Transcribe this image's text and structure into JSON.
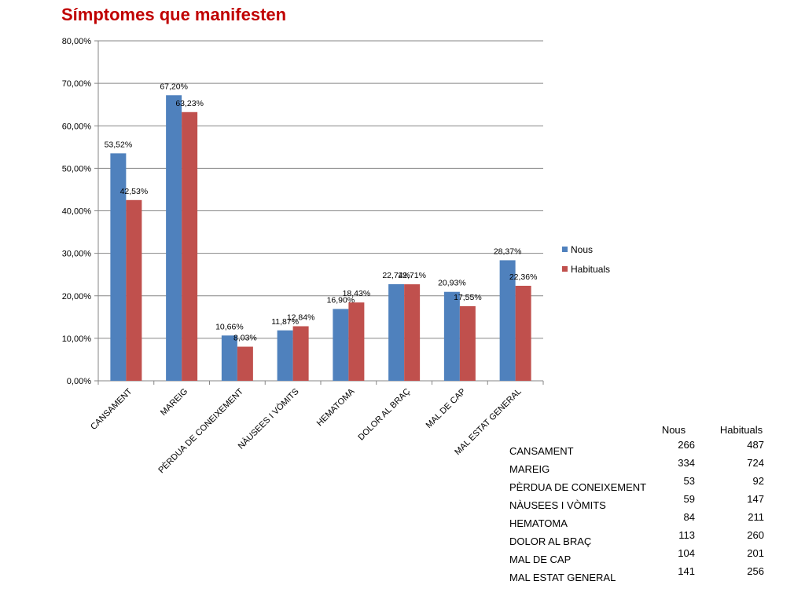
{
  "title": "Símptomes que manifesten",
  "chart_data": {
    "type": "bar",
    "categories": [
      "CANSAMENT",
      "MAREIG",
      "PÈRDUA DE CONEIXEMENT",
      "NÀUSEES I VÒMITS",
      "HEMATOMA",
      "DOLOR AL BRAÇ",
      "MAL DE CAP",
      "MAL ESTAT GENERAL"
    ],
    "series": [
      {
        "name": "Nous",
        "color": "#4f81bd",
        "values": [
          53.52,
          67.2,
          10.66,
          11.87,
          16.9,
          22.74,
          20.93,
          28.37
        ],
        "labels": [
          "53,52%",
          "67,20%",
          "10,66%",
          "11,87%",
          "16,90%",
          "22,74%",
          "20,93%",
          "28,37%"
        ]
      },
      {
        "name": "Habituals",
        "color": "#c0504d",
        "values": [
          42.53,
          63.23,
          8.03,
          12.84,
          18.43,
          22.71,
          17.55,
          22.36
        ],
        "labels": [
          "42,53%",
          "63,23%",
          "8,03%",
          "12,84%",
          "18,43%",
          "22,71%",
          "17,55%",
          "22,36%"
        ]
      }
    ],
    "ylim": [
      0,
      80
    ],
    "yticks": [
      0,
      10,
      20,
      30,
      40,
      50,
      60,
      70,
      80
    ],
    "ytick_labels": [
      "0,00%",
      "10,00%",
      "20,00%",
      "30,00%",
      "40,00%",
      "50,00%",
      "60,00%",
      "70,00%",
      "80,00%"
    ],
    "grid": true,
    "legend_position": "right",
    "xlabel": "",
    "ylabel": ""
  },
  "table": {
    "headers": [
      "Nous",
      "Habituals"
    ],
    "rows": [
      {
        "label": "CANSAMENT",
        "nous": "266",
        "habituals": "487"
      },
      {
        "label": "MAREIG",
        "nous": "334",
        "habituals": "724"
      },
      {
        "label": "PÈRDUA DE CONEIXEMENT",
        "nous": "53",
        "habituals": "92"
      },
      {
        "label": "NÀUSEES I VÒMITS",
        "nous": "59",
        "habituals": "147"
      },
      {
        "label": "HEMATOMA",
        "nous": "84",
        "habituals": "211"
      },
      {
        "label": "DOLOR AL BRAÇ",
        "nous": "113",
        "habituals": "260"
      },
      {
        "label": "MAL DE CAP",
        "nous": "104",
        "habituals": "201"
      },
      {
        "label": "MAL ESTAT GENERAL",
        "nous": "141",
        "habituals": "256"
      }
    ]
  }
}
